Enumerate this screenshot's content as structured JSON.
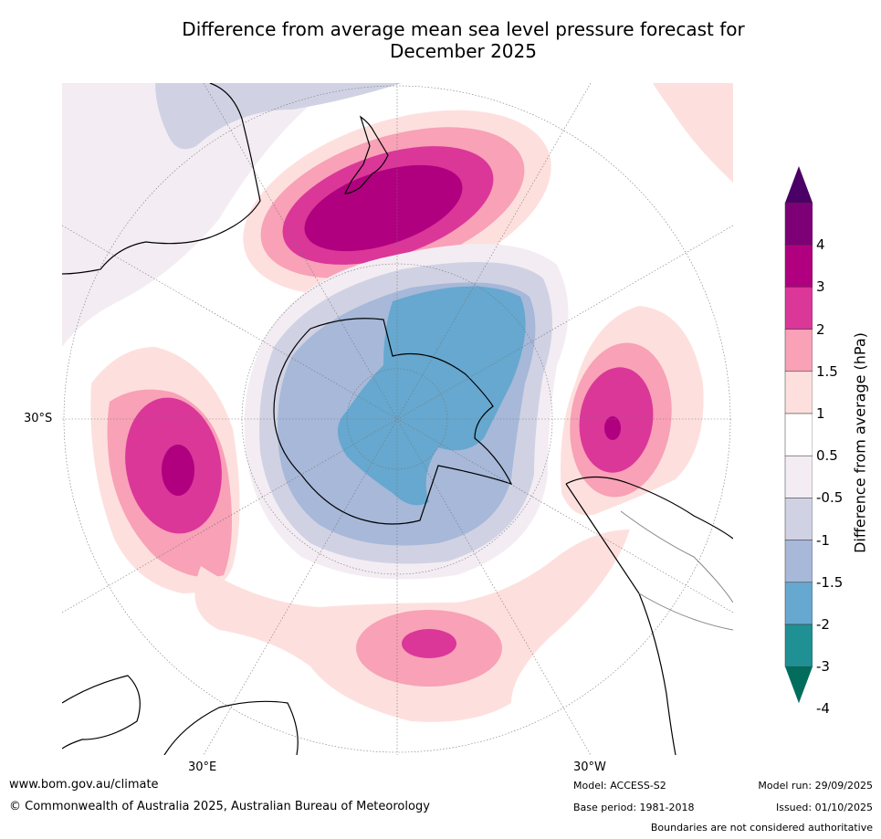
{
  "title": {
    "line1": "Difference from average mean sea level pressure forecast for",
    "line2": "December 2025"
  },
  "map": {
    "projection": "south-polar-stereographic",
    "lat_label": "30°S",
    "lon_label_east": "30°E",
    "lon_label_west": "30°W"
  },
  "colorbar": {
    "label": "Difference from average (hPa)",
    "ticks": [
      "4",
      "3",
      "2",
      "1.5",
      "1",
      "0.5",
      "-0.5",
      "-1",
      "-1.5",
      "-2",
      "-3",
      "-4"
    ],
    "colors": [
      "#4a0066",
      "#7e0077",
      "#b0007f",
      "#da3799",
      "#f8a1b7",
      "#fde0de",
      "#ffffff",
      "#f3edf3",
      "#d0d2e4",
      "#a7b8d9",
      "#66a8cf",
      "#1f9194",
      "#026c5d"
    ]
  },
  "footer": {
    "website": "www.bom.gov.au/climate",
    "copyright": "© Commonwealth of Australia 2025, Australian Bureau of Meteorology",
    "model": "Model: ACCESS-S2",
    "base_period": "Base period: 1981-2018",
    "model_run": "Model run: 29/09/2025",
    "issued": "Issued: 01/10/2025",
    "disclaimer": "Boundaries are not considered authoritative"
  }
}
